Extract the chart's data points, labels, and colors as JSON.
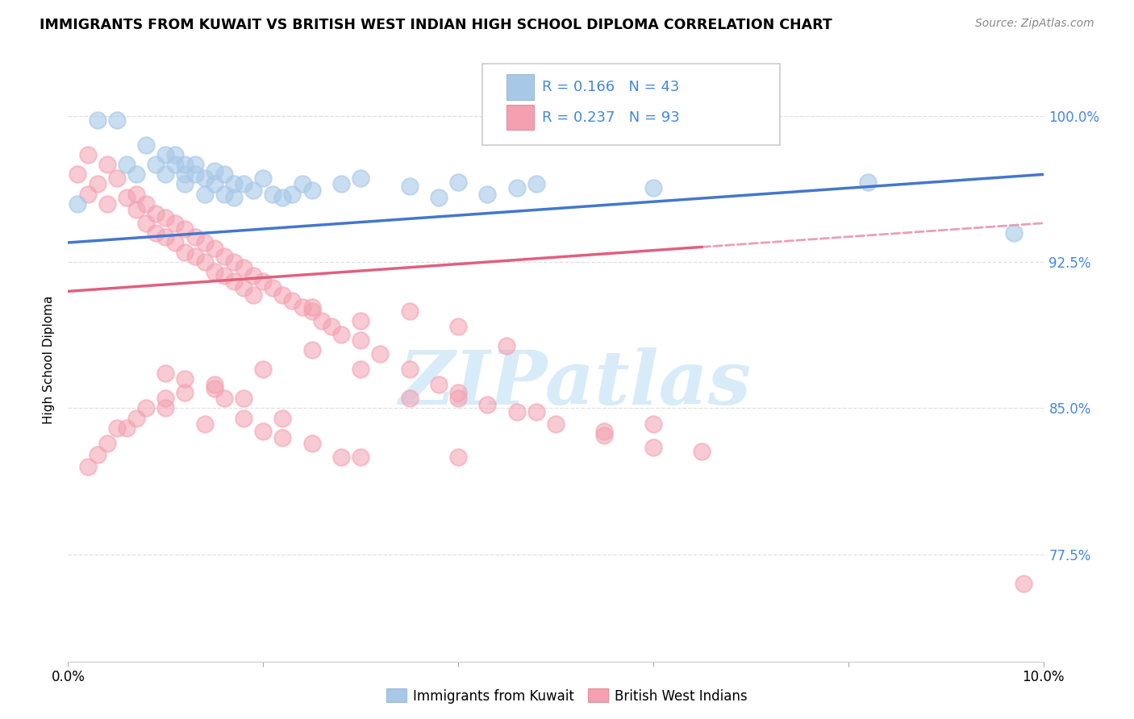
{
  "title": "IMMIGRANTS FROM KUWAIT VS BRITISH WEST INDIAN HIGH SCHOOL DIPLOMA CORRELATION CHART",
  "source": "Source: ZipAtlas.com",
  "ylabel": "High School Diploma",
  "ytick_labels": [
    "100.0%",
    "92.5%",
    "85.0%",
    "77.5%"
  ],
  "ytick_values": [
    1.0,
    0.925,
    0.85,
    0.775
  ],
  "xlim": [
    0.0,
    0.1
  ],
  "ylim": [
    0.72,
    1.03
  ],
  "blue_color": "#A8C8E8",
  "pink_color": "#F4A0B0",
  "trendline_blue_color": "#4477CC",
  "trendline_pink_color": "#E06080",
  "trendline_pink_dashed_color": "#E8A0B8",
  "right_tick_color": "#4488DD",
  "watermark_color": "#D8EBF8",
  "grid_color": "#E0E0E0",
  "kuwait_x": [
    0.001,
    0.003,
    0.005,
    0.006,
    0.007,
    0.008,
    0.009,
    0.01,
    0.01,
    0.011,
    0.011,
    0.012,
    0.012,
    0.012,
    0.013,
    0.013,
    0.014,
    0.014,
    0.015,
    0.015,
    0.016,
    0.016,
    0.017,
    0.017,
    0.018,
    0.019,
    0.02,
    0.021,
    0.022,
    0.023,
    0.024,
    0.025,
    0.028,
    0.03,
    0.035,
    0.038,
    0.04,
    0.043,
    0.046,
    0.048,
    0.06,
    0.082,
    0.097
  ],
  "kuwait_y": [
    0.955,
    0.998,
    0.998,
    0.975,
    0.97,
    0.985,
    0.975,
    0.98,
    0.97,
    0.98,
    0.975,
    0.975,
    0.97,
    0.965,
    0.975,
    0.97,
    0.968,
    0.96,
    0.972,
    0.965,
    0.97,
    0.96,
    0.965,
    0.958,
    0.965,
    0.962,
    0.968,
    0.96,
    0.958,
    0.96,
    0.965,
    0.962,
    0.965,
    0.968,
    0.964,
    0.958,
    0.966,
    0.96,
    0.963,
    0.965,
    0.963,
    0.966,
    0.94
  ],
  "bwi_x": [
    0.001,
    0.002,
    0.002,
    0.003,
    0.004,
    0.004,
    0.005,
    0.006,
    0.007,
    0.007,
    0.008,
    0.008,
    0.009,
    0.009,
    0.01,
    0.01,
    0.011,
    0.011,
    0.012,
    0.012,
    0.013,
    0.013,
    0.014,
    0.014,
    0.015,
    0.015,
    0.016,
    0.016,
    0.017,
    0.017,
    0.018,
    0.018,
    0.019,
    0.019,
    0.02,
    0.021,
    0.022,
    0.023,
    0.024,
    0.025,
    0.026,
    0.027,
    0.028,
    0.03,
    0.032,
    0.035,
    0.038,
    0.04,
    0.043,
    0.046,
    0.05,
    0.055,
    0.06,
    0.065,
    0.035,
    0.025,
    0.03,
    0.02,
    0.015,
    0.012,
    0.01,
    0.008,
    0.006,
    0.004,
    0.003,
    0.002,
    0.016,
    0.018,
    0.022,
    0.028,
    0.014,
    0.02,
    0.025,
    0.03,
    0.04,
    0.01,
    0.007,
    0.005,
    0.012,
    0.015,
    0.018,
    0.022,
    0.01,
    0.035,
    0.048,
    0.06,
    0.055,
    0.025,
    0.03,
    0.04,
    0.045,
    0.098,
    0.04
  ],
  "bwi_y": [
    0.97,
    0.98,
    0.96,
    0.965,
    0.975,
    0.955,
    0.968,
    0.958,
    0.96,
    0.952,
    0.955,
    0.945,
    0.95,
    0.94,
    0.948,
    0.938,
    0.945,
    0.935,
    0.942,
    0.93,
    0.938,
    0.928,
    0.935,
    0.925,
    0.932,
    0.92,
    0.928,
    0.918,
    0.925,
    0.915,
    0.922,
    0.912,
    0.918,
    0.908,
    0.915,
    0.912,
    0.908,
    0.905,
    0.902,
    0.9,
    0.895,
    0.892,
    0.888,
    0.885,
    0.878,
    0.87,
    0.862,
    0.858,
    0.852,
    0.848,
    0.842,
    0.836,
    0.83,
    0.828,
    0.9,
    0.88,
    0.87,
    0.87,
    0.86,
    0.858,
    0.855,
    0.85,
    0.84,
    0.832,
    0.826,
    0.82,
    0.855,
    0.845,
    0.835,
    0.825,
    0.842,
    0.838,
    0.832,
    0.825,
    0.825,
    0.85,
    0.845,
    0.84,
    0.865,
    0.862,
    0.855,
    0.845,
    0.868,
    0.855,
    0.848,
    0.842,
    0.838,
    0.902,
    0.895,
    0.892,
    0.882,
    0.76,
    0.855
  ]
}
